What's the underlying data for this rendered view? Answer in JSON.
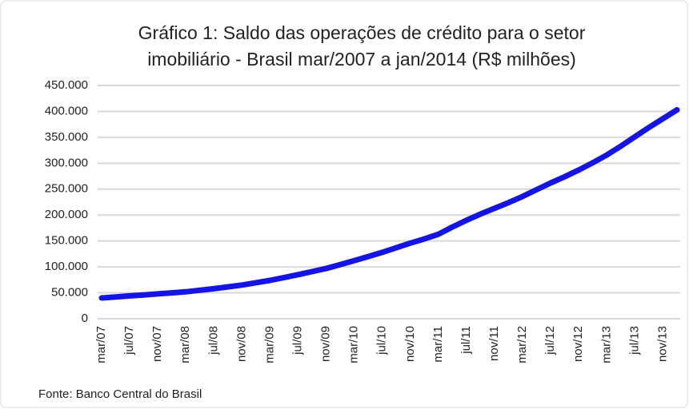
{
  "chart_data": {
    "type": "line",
    "title": [
      "Gráfico 1: Saldo das operações de crédito para o setor",
      "imobiliário - Brasil mar/2007 a jan/2014 (R$ milhões)"
    ],
    "source": "Fonte: Banco Central do Brasil",
    "categories": [
      "mar/07",
      null,
      "jul/07",
      null,
      "nov/07",
      null,
      "mar/08",
      null,
      "jul/08",
      null,
      "nov/08",
      null,
      "mar/09",
      null,
      "jul/09",
      null,
      "nov/09",
      null,
      "mar/10",
      null,
      "jul/10",
      null,
      "nov/10",
      null,
      "mar/11",
      null,
      "jul/11",
      null,
      "nov/11",
      null,
      "mar/12",
      null,
      "jul/12",
      null,
      "nov/12",
      null,
      "mar/13",
      null,
      "jul/13",
      null,
      "nov/13",
      null
    ],
    "values": [
      40000,
      42000,
      44000,
      46000,
      48000,
      50000,
      52000,
      55000,
      58000,
      61500,
      65000,
      69500,
      74000,
      79500,
      85000,
      91000,
      97000,
      104500,
      112000,
      120000,
      128000,
      137000,
      146000,
      154000,
      163000,
      177000,
      190000,
      202000,
      213000,
      224000,
      236000,
      249000,
      262000,
      274000,
      287000,
      301000,
      316000,
      333000,
      351000,
      369000,
      386000,
      403000
    ],
    "color": "#1414e6",
    "ylim": [
      0,
      450000
    ],
    "yticks": [
      0,
      {
        "value": 50000,
        "label": "50.000"
      },
      {
        "value": 100000,
        "label": "100.000"
      },
      {
        "value": 150000,
        "label": "150.000"
      },
      {
        "value": 200000,
        "label": "200.000"
      },
      {
        "value": 250000,
        "label": "250.000"
      },
      {
        "value": 300000,
        "label": "300.000"
      },
      {
        "value": 350000,
        "label": "350.000"
      },
      {
        "value": 400000,
        "label": "400.000"
      },
      {
        "value": 450000,
        "label": "450.000"
      }
    ],
    "grid": true
  }
}
